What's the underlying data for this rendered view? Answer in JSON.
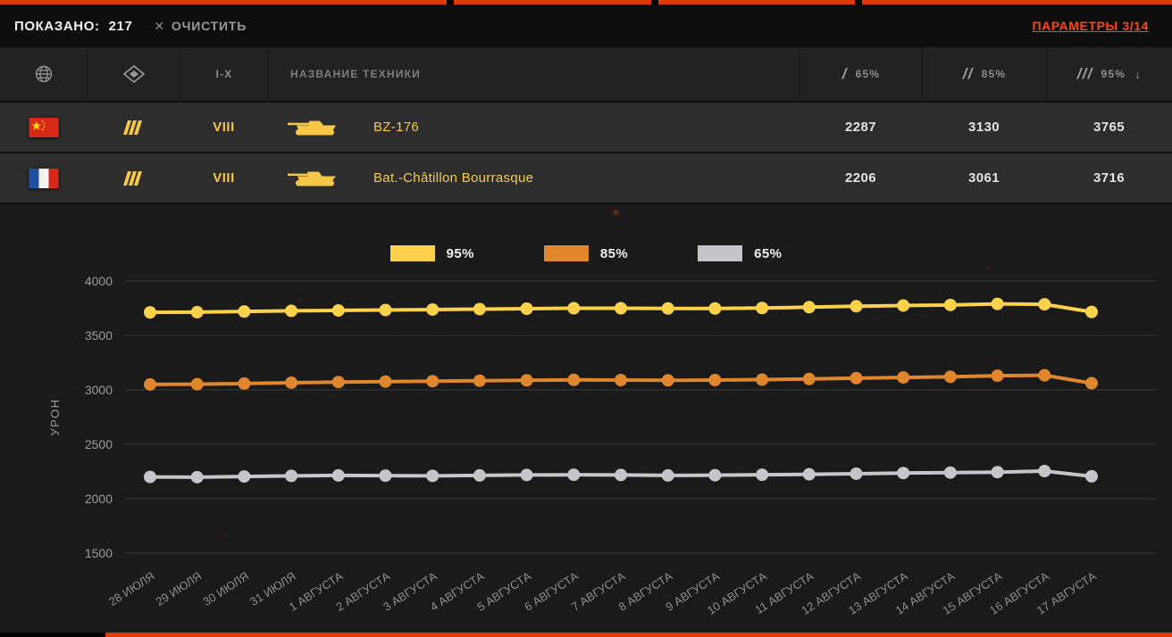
{
  "topbar": {
    "shown_label": "ПОКАЗАНО:",
    "shown_count": "217",
    "clear_label": "ОЧИСТИТЬ",
    "clear_icon": "✕",
    "params_label": "ПАРАМЕТРЫ 3/14"
  },
  "table": {
    "header": {
      "tier_label": "I-X",
      "name_placeholder": "НАЗВАНИЕ ТЕХНИКИ",
      "col65_slash": "/",
      "col65_label": "65%",
      "col85_slash": "//",
      "col85_label": "85%",
      "col95_slash": "///",
      "col95_label": "95%",
      "sort_arrow": "↓"
    },
    "rows": [
      {
        "nation": "china",
        "tier": "VIII",
        "name": "BZ-176",
        "v65": "2287",
        "v85": "3130",
        "v95": "3765"
      },
      {
        "nation": "france",
        "tier": "VIII",
        "name": "Bat.-Châtillon Bourrasque",
        "v65": "2206",
        "v85": "3061",
        "v95": "3716"
      }
    ]
  },
  "chart_data": {
    "type": "line",
    "title": "",
    "xlabel": "",
    "ylabel": "УРОН",
    "ylim": [
      1500,
      4000
    ],
    "yticks": [
      1500,
      2000,
      2500,
      3000,
      3500,
      4000
    ],
    "grid": "horizontal",
    "legend_position": "top-center",
    "x": [
      "28 ИЮЛЯ",
      "29 ИЮЛЯ",
      "30 ИЮЛЯ",
      "31 ИЮЛЯ",
      "1 АВГУСТА",
      "2 АВГУСТА",
      "3 АВГУСТА",
      "4 АВГУСТА",
      "5 АВГУСТА",
      "6 АВГУСТА",
      "7 АВГУСТА",
      "8 АВГУСТА",
      "9 АВГУСТА",
      "10 АВГУСТА",
      "11 АВГУСТА",
      "12 АВГУСТА",
      "13 АВГУСТА",
      "14 АВГУСТА",
      "15 АВГУСТА",
      "16 АВГУСТА",
      "17 АВГУСТА"
    ],
    "series": [
      {
        "name": "95%",
        "color": "#fdd24a",
        "values": [
          3712,
          3714,
          3720,
          3726,
          3730,
          3734,
          3738,
          3742,
          3746,
          3750,
          3750,
          3748,
          3748,
          3752,
          3760,
          3768,
          3775,
          3780,
          3790,
          3786,
          3716
        ]
      },
      {
        "name": "85%",
        "color": "#e0872e",
        "values": [
          3050,
          3052,
          3058,
          3066,
          3072,
          3076,
          3080,
          3084,
          3088,
          3092,
          3090,
          3088,
          3090,
          3094,
          3100,
          3108,
          3114,
          3120,
          3130,
          3134,
          3061
        ]
      },
      {
        "name": "65%",
        "color": "#c6c6ca",
        "values": [
          2200,
          2198,
          2204,
          2210,
          2214,
          2212,
          2210,
          2214,
          2218,
          2220,
          2218,
          2214,
          2216,
          2220,
          2224,
          2230,
          2236,
          2240,
          2244,
          2254,
          2206
        ]
      }
    ]
  }
}
